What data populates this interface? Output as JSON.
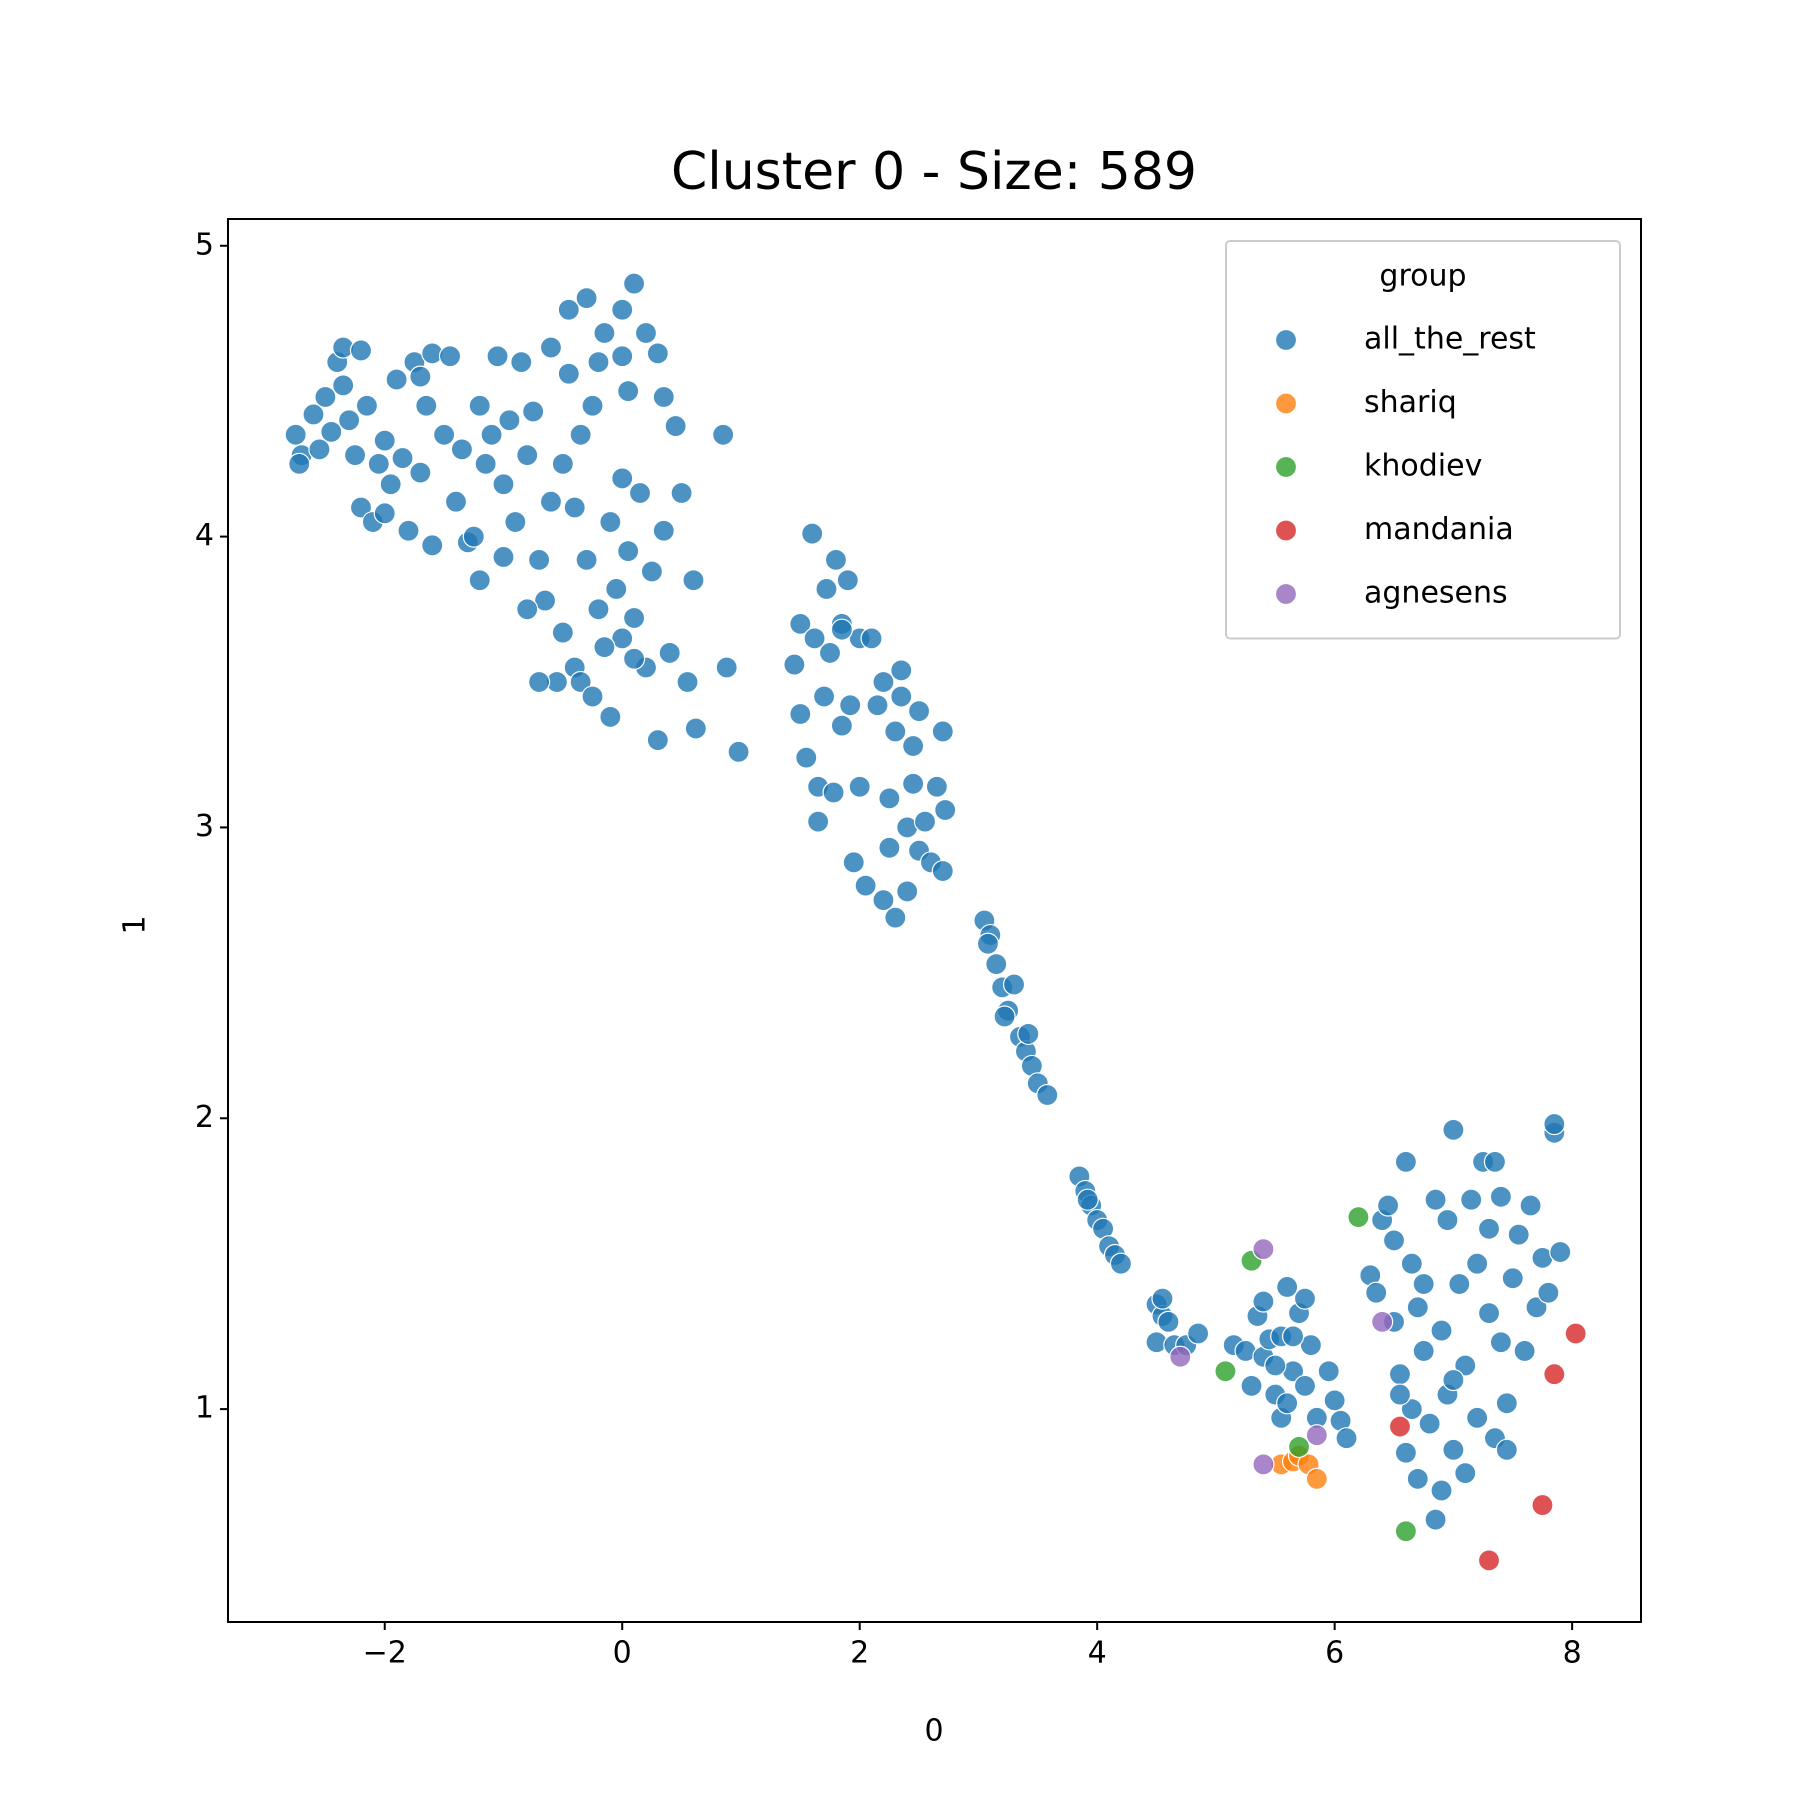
{
  "chart_data": {
    "type": "scatter",
    "title": "Cluster 0 - Size: 589",
    "x_label": "0",
    "y_label": "1",
    "xlim": [
      -3.32,
      8.58
    ],
    "ylim": [
      0.268,
      5.092
    ],
    "xticks": [
      {
        "value": -2,
        "label": "−2"
      },
      0,
      2,
      4,
      6,
      8
    ],
    "yticks": [
      1,
      2,
      3,
      4,
      5
    ],
    "grid": false,
    "legend": "upper right",
    "legend_title": "group",
    "series": [
      {
        "name": "all_the_rest",
        "color": "#1f77b4",
        "x": [
          -2.75,
          -2.7,
          -2.72,
          -2.6,
          -2.55,
          -2.5,
          -2.45,
          -2.4,
          -2.35,
          -2.35,
          -2.3,
          -2.25,
          -2.2,
          -2.2,
          -2.15,
          -2.1,
          -2.05,
          -2.0,
          -2.0,
          -1.95,
          -1.9,
          -1.85,
          -1.8,
          -1.75,
          -1.7,
          -1.7,
          -1.65,
          -1.6,
          -1.6,
          -1.5,
          -1.45,
          -1.4,
          -1.35,
          -1.3,
          -1.25,
          -1.2,
          -1.2,
          -1.15,
          -1.1,
          -1.05,
          -1.0,
          -1.0,
          -0.95,
          -0.9,
          -0.85,
          -0.8,
          -0.75,
          -0.7,
          -0.65,
          -0.6,
          -0.6,
          -0.55,
          -0.5,
          -0.5,
          -0.45,
          -0.4,
          -0.4,
          -0.35,
          -0.35,
          -0.3,
          -0.3,
          -0.25,
          -0.2,
          -0.2,
          -0.15,
          -0.1,
          -0.1,
          -0.05,
          0,
          0,
          0,
          0.05,
          0.05,
          0.1,
          0.1,
          0.15,
          0.2,
          0.2,
          0.25,
          0.3,
          0.3,
          0.35,
          0.4,
          0.45,
          0.5,
          0.55,
          0.6,
          0.62,
          0.85,
          0.88,
          0.98,
          -0.45,
          -0.25,
          0.0,
          0.35,
          -0.8,
          -0.7,
          0.1,
          -0.15,
          1.45,
          1.5,
          1.5,
          1.55,
          1.6,
          1.62,
          1.65,
          1.65,
          1.7,
          1.72,
          1.75,
          1.78,
          1.8,
          1.85,
          1.85,
          1.9,
          1.92,
          1.95,
          2.0,
          2.0,
          2.05,
          2.1,
          2.15,
          2.2,
          2.2,
          2.25,
          2.25,
          2.3,
          2.3,
          2.35,
          2.4,
          2.4,
          2.45,
          2.45,
          2.5,
          2.5,
          2.55,
          2.6,
          2.65,
          2.7,
          2.72,
          2.7,
          2.35,
          1.85,
          3.05,
          3.1,
          3.15,
          3.2,
          3.25,
          3.3,
          3.35,
          3.4,
          3.45,
          3.5,
          3.58,
          3.08,
          3.22,
          3.42,
          3.85,
          3.9,
          3.95,
          4.0,
          4.05,
          4.1,
          4.15,
          4.2,
          3.92,
          4.5,
          4.5,
          4.55,
          4.6,
          4.65,
          4.75,
          4.85,
          4.55,
          5.15,
          5.25,
          5.3,
          5.35,
          5.4,
          5.4,
          5.45,
          5.5,
          5.55,
          5.55,
          5.6,
          5.65,
          5.7,
          5.75,
          5.75,
          5.8,
          5.85,
          5.95,
          6.0,
          6.05,
          6.1,
          5.5,
          5.6,
          5.65,
          6.3,
          6.35,
          6.4,
          6.45,
          6.5,
          6.55,
          6.6,
          6.6,
          6.65,
          6.65,
          6.7,
          6.7,
          6.75,
          6.8,
          6.85,
          6.85,
          6.9,
          6.9,
          6.95,
          6.95,
          7.0,
          7.0,
          7.05,
          7.1,
          7.1,
          7.15,
          7.2,
          7.2,
          7.25,
          7.3,
          7.3,
          7.35,
          7.4,
          7.4,
          7.45,
          7.45,
          7.5,
          7.55,
          7.6,
          7.65,
          7.7,
          7.75,
          7.8,
          7.85,
          7.9,
          7.85,
          6.5,
          6.55,
          7.0,
          7.35,
          6.75
        ],
        "y": [
          4.35,
          4.28,
          4.25,
          4.42,
          4.3,
          4.48,
          4.36,
          4.6,
          4.65,
          4.52,
          4.4,
          4.28,
          4.64,
          4.1,
          4.45,
          4.05,
          4.25,
          4.33,
          4.08,
          4.18,
          4.54,
          4.27,
          4.02,
          4.6,
          4.55,
          4.22,
          4.45,
          4.63,
          3.97,
          4.35,
          4.62,
          4.12,
          4.3,
          3.98,
          4.0,
          3.85,
          4.45,
          4.25,
          4.35,
          4.62,
          4.18,
          3.93,
          4.4,
          4.05,
          4.6,
          4.28,
          4.43,
          3.92,
          3.78,
          4.12,
          4.65,
          3.5,
          4.25,
          3.67,
          4.56,
          4.1,
          3.55,
          4.35,
          3.5,
          3.92,
          4.82,
          3.45,
          4.6,
          3.75,
          4.7,
          4.05,
          3.38,
          3.82,
          4.78,
          4.2,
          3.65,
          4.5,
          3.95,
          4.87,
          3.72,
          4.15,
          4.7,
          3.55,
          3.88,
          4.63,
          3.3,
          4.02,
          3.6,
          4.38,
          4.15,
          3.5,
          3.85,
          3.34,
          4.35,
          3.55,
          3.26,
          4.78,
          4.45,
          4.62,
          4.48,
          3.75,
          3.5,
          3.58,
          3.62,
          3.56,
          3.7,
          3.39,
          3.24,
          4.01,
          3.65,
          3.14,
          3.02,
          3.45,
          3.82,
          3.6,
          3.12,
          3.92,
          3.35,
          3.7,
          3.85,
          3.42,
          2.88,
          3.65,
          3.14,
          2.8,
          3.65,
          3.42,
          2.75,
          3.5,
          2.93,
          3.1,
          3.33,
          2.69,
          3.45,
          3.0,
          2.78,
          3.28,
          3.15,
          3.4,
          2.92,
          3.02,
          2.88,
          3.14,
          3.33,
          3.06,
          2.85,
          3.54,
          3.68,
          2.68,
          2.63,
          2.53,
          2.45,
          2.37,
          2.46,
          2.28,
          2.23,
          2.18,
          2.12,
          2.08,
          2.6,
          2.35,
          2.29,
          1.8,
          1.75,
          1.7,
          1.65,
          1.62,
          1.56,
          1.53,
          1.5,
          1.72,
          1.36,
          1.23,
          1.32,
          1.3,
          1.22,
          1.22,
          1.26,
          1.38,
          1.22,
          1.2,
          1.08,
          1.32,
          1.18,
          1.37,
          1.24,
          1.05,
          0.97,
          1.25,
          1.42,
          1.13,
          1.33,
          1.38,
          1.08,
          1.22,
          0.97,
          1.13,
          1.03,
          0.96,
          0.9,
          1.15,
          1.02,
          1.25,
          1.46,
          1.4,
          1.65,
          1.7,
          1.58,
          1.12,
          1.85,
          0.85,
          1.5,
          1.0,
          1.35,
          0.76,
          1.2,
          0.95,
          1.72,
          0.62,
          1.27,
          0.72,
          1.65,
          1.05,
          1.96,
          0.86,
          1.43,
          1.15,
          0.78,
          1.72,
          1.5,
          0.97,
          1.85,
          1.62,
          1.33,
          0.9,
          1.73,
          1.23,
          1.02,
          0.86,
          1.45,
          1.6,
          1.2,
          1.7,
          1.35,
          1.52,
          1.4,
          1.95,
          1.54,
          1.98,
          1.3,
          1.05,
          1.1,
          1.85,
          1.43
        ]
      },
      {
        "name": "shariq",
        "color": "#ff7f0e",
        "x": [
          5.55,
          5.65,
          5.7,
          5.78,
          5.85
        ],
        "y": [
          0.81,
          0.82,
          0.84,
          0.81,
          0.76
        ]
      },
      {
        "name": "khodiev",
        "color": "#2ca02c",
        "x": [
          6.2,
          5.3,
          5.08,
          5.7,
          6.6
        ],
        "y": [
          1.66,
          1.51,
          1.13,
          0.87,
          0.58
        ]
      },
      {
        "name": "mandania",
        "color": "#d62728",
        "x": [
          8.03,
          7.85,
          6.55,
          7.75,
          7.3
        ],
        "y": [
          1.26,
          1.12,
          0.94,
          0.67,
          0.48
        ]
      },
      {
        "name": "agnesens",
        "color": "#9467bd",
        "x": [
          5.4,
          6.4,
          4.7,
          5.85,
          5.4
        ],
        "y": [
          1.55,
          1.3,
          1.18,
          0.91,
          0.81
        ]
      }
    ]
  }
}
